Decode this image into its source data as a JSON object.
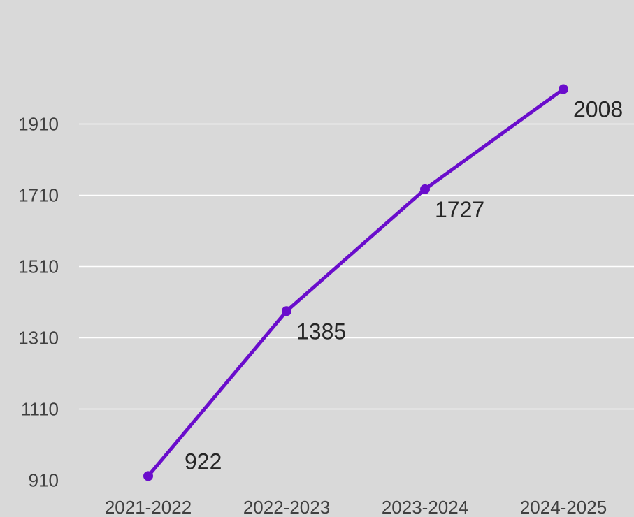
{
  "chart_data": {
    "type": "line",
    "categories": [
      "2021-2022",
      "2022-2023",
      "2023-2024",
      "2024-2025"
    ],
    "series": [
      {
        "values": [
          922,
          1385,
          1727,
          2008
        ],
        "color": "#6a0dcc"
      }
    ],
    "data_labels": [
      "922",
      "1385",
      "1727",
      "2008"
    ],
    "yticks": [
      910,
      1110,
      1310,
      1510,
      1710,
      1910
    ],
    "ytick_labels": [
      "910",
      "1110",
      "1310",
      "1510",
      "1710",
      "1910"
    ],
    "ylim": [
      910,
      2110
    ],
    "grid": true,
    "legend": "none",
    "title": "",
    "xlabel": "",
    "ylabel": ""
  }
}
